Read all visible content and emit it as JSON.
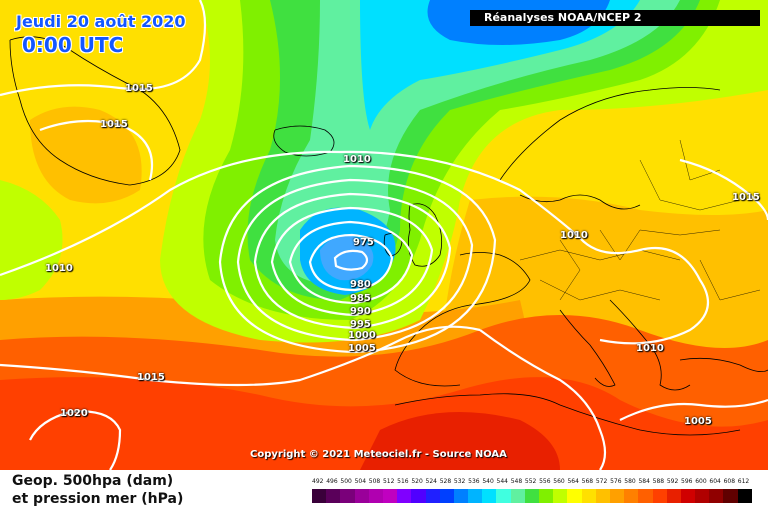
{
  "header": {
    "date": "Jeudi 20 août 2020",
    "time": "0:00 UTC",
    "source": "Réanalyses NOAA/NCEP 2"
  },
  "copyright": "Copyright © 2021 Meteociel.fr - Source NOAA",
  "legend": {
    "line1": "Geop. 500hpa (dam)",
    "line2": "et pression mer (hPa)",
    "scale_values": [
      "492",
      "496",
      "500",
      "504",
      "508",
      "512",
      "516",
      "520",
      "524",
      "528",
      "532",
      "536",
      "540",
      "544",
      "548",
      "552",
      "556",
      "560",
      "564",
      "568",
      "572",
      "576",
      "580",
      "584",
      "588",
      "592",
      "596",
      "600",
      "604",
      "608",
      "612"
    ],
    "scale_colors": [
      "#3a003a",
      "#5a005a",
      "#7a007a",
      "#9a009a",
      "#b000b0",
      "#c000c0",
      "#8000ff",
      "#5000ff",
      "#2020ff",
      "#0040ff",
      "#0080ff",
      "#00b4ff",
      "#00e0ff",
      "#40ffe0",
      "#60f0a0",
      "#40e040",
      "#80f000",
      "#c0ff00",
      "#ffff00",
      "#ffe000",
      "#ffc000",
      "#ffa000",
      "#ff8000",
      "#ff6000",
      "#ff4000",
      "#e82000",
      "#d00000",
      "#b00000",
      "#900000",
      "#600000",
      "#000000"
    ]
  },
  "isobars": [
    {
      "value": "1015",
      "label": "isobar-1015-greenland"
    },
    {
      "value": "1015",
      "label": "isobar-1015-greenland-south"
    },
    {
      "value": "1010",
      "label": "isobar-1010-iceland"
    },
    {
      "value": "975",
      "label": "isobar-975"
    },
    {
      "value": "980",
      "label": "isobar-980"
    },
    {
      "value": "985",
      "label": "isobar-985"
    },
    {
      "value": "990",
      "label": "isobar-990"
    },
    {
      "value": "995",
      "label": "isobar-995"
    },
    {
      "value": "1000",
      "label": "isobar-1000"
    },
    {
      "value": "1005",
      "label": "isobar-1005"
    },
    {
      "value": "1010",
      "label": "isobar-1010-west"
    },
    {
      "value": "1015",
      "label": "isobar-1015-azores"
    },
    {
      "value": "1020",
      "label": "isobar-1020"
    },
    {
      "value": "1010",
      "label": "isobar-1010-germany"
    },
    {
      "value": "1010",
      "label": "isobar-1010-balkans"
    },
    {
      "value": "1005",
      "label": "isobar-1005-east-med"
    },
    {
      "value": "1015",
      "label": "isobar-1015-russia"
    }
  ]
}
